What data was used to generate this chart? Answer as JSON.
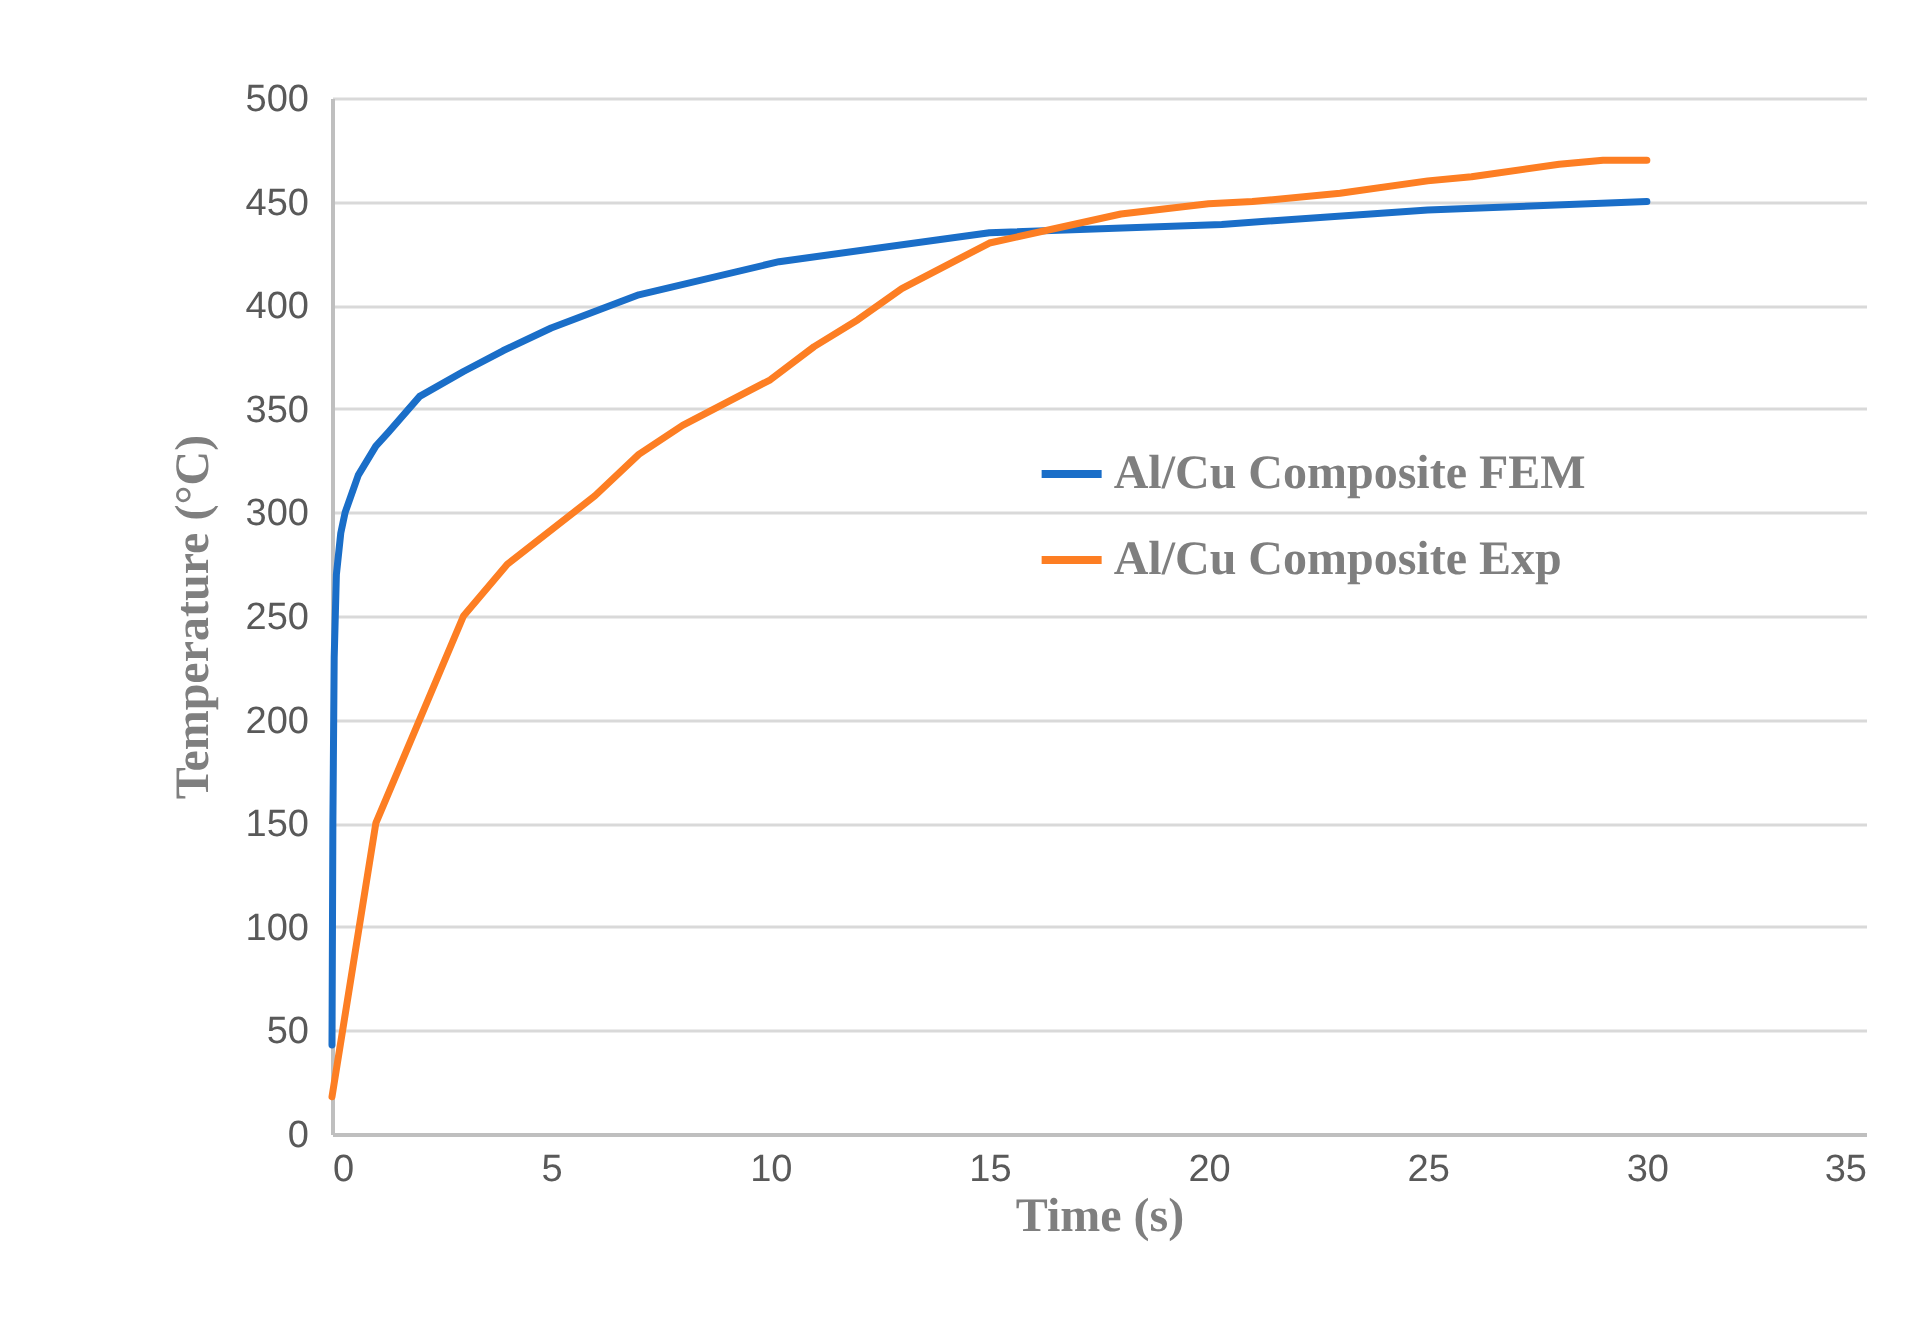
{
  "chart_data": {
    "type": "line",
    "xlabel": "Time (s)",
    "ylabel": "Temperature (°C)",
    "xlim": [
      0,
      35
    ],
    "xticks": [
      0,
      5,
      10,
      15,
      20,
      25,
      30,
      35
    ],
    "ylim": [
      0,
      500
    ],
    "yticks": [
      0,
      50,
      100,
      150,
      200,
      250,
      300,
      350,
      400,
      450,
      500
    ],
    "grid": "y",
    "legend": "right",
    "line_style": "solid",
    "series": [
      {
        "name": "Al/Cu Composite FEM",
        "color": "#1a6ec8",
        "x": [
          0,
          0.02,
          0.05,
          0.1,
          0.2,
          0.3,
          0.6,
          1,
          1.3,
          2,
          3,
          3.9,
          5,
          7,
          10.2,
          15,
          20.3,
          25,
          30
        ],
        "values": [
          43,
          150,
          230,
          270,
          290,
          300,
          318,
          332,
          339,
          356,
          368,
          378,
          389,
          405,
          421,
          435,
          439,
          446,
          450
        ]
      },
      {
        "name": "Al/Cu Composite Exp",
        "color": "#fd7e23",
        "x": [
          0,
          1,
          3,
          4,
          6,
          7,
          8,
          10,
          11,
          12,
          13,
          15,
          18,
          20,
          21,
          23,
          25,
          26,
          28,
          29,
          30
        ],
        "values": [
          18,
          150,
          250,
          275,
          308,
          328,
          342,
          364,
          380,
          393,
          408,
          430,
          444,
          449,
          450,
          454,
          460,
          462,
          468,
          470,
          470
        ]
      }
    ]
  }
}
